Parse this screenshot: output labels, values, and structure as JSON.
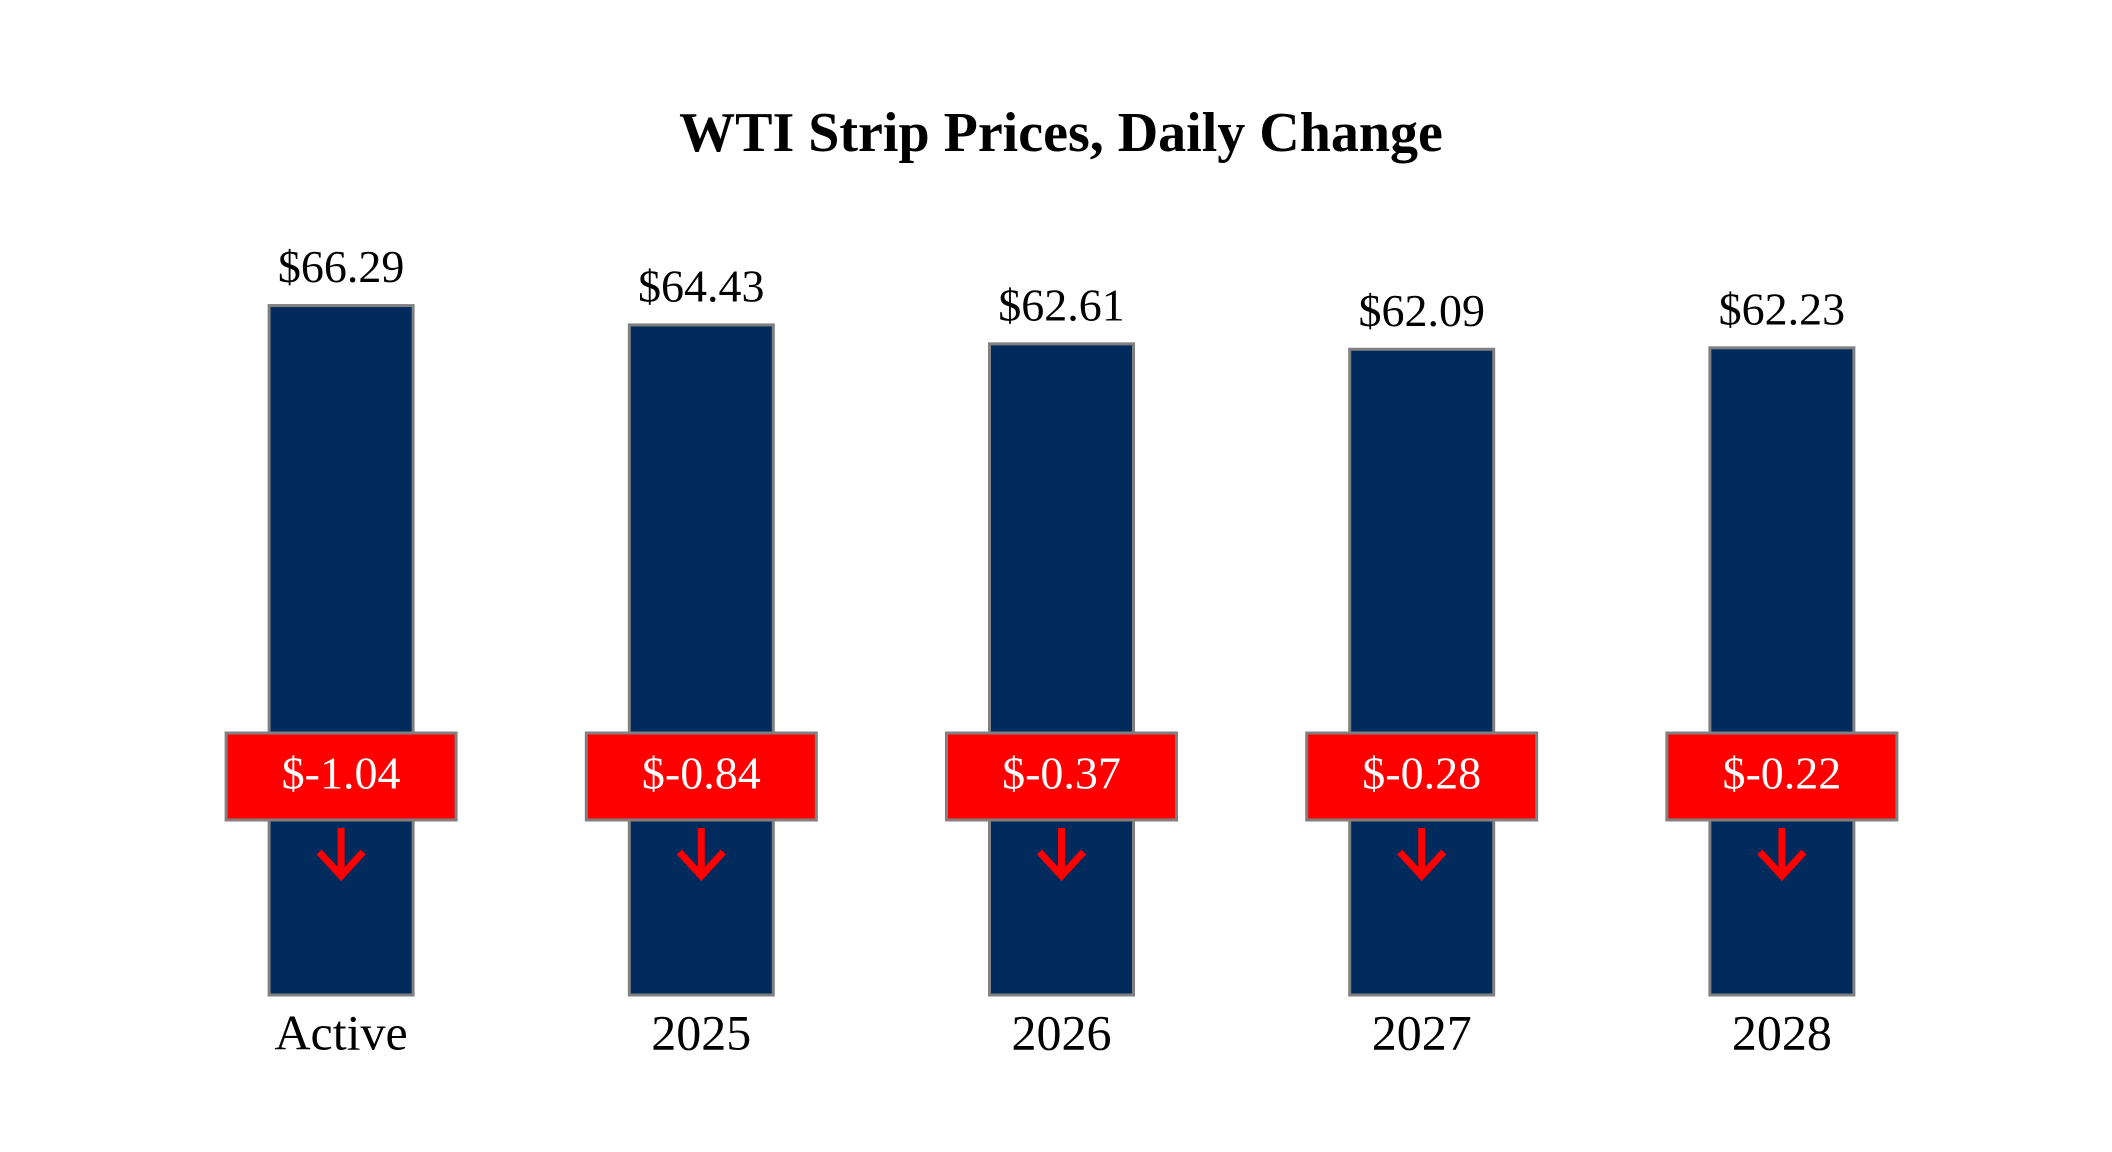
{
  "chart_data": {
    "type": "bar",
    "title": "WTI Strip Prices, Daily Change",
    "categories": [
      "Active",
      "2025",
      "2026",
      "2027",
      "2028"
    ],
    "values": [
      66.29,
      64.43,
      62.61,
      62.09,
      62.23
    ],
    "value_labels": [
      "$66.29",
      "$64.43",
      "$62.61",
      "$62.09",
      "$62.23"
    ],
    "color": "#002b5c",
    "changes": {
      "values": [
        -1.04,
        -0.84,
        -0.37,
        -0.28,
        -0.22
      ],
      "value_labels": [
        "$-1.04",
        "$-0.84",
        "$-0.37",
        "$-0.28",
        "$-0.22"
      ],
      "color": "#ff0000"
    },
    "ylim": [
      0,
      80
    ]
  }
}
